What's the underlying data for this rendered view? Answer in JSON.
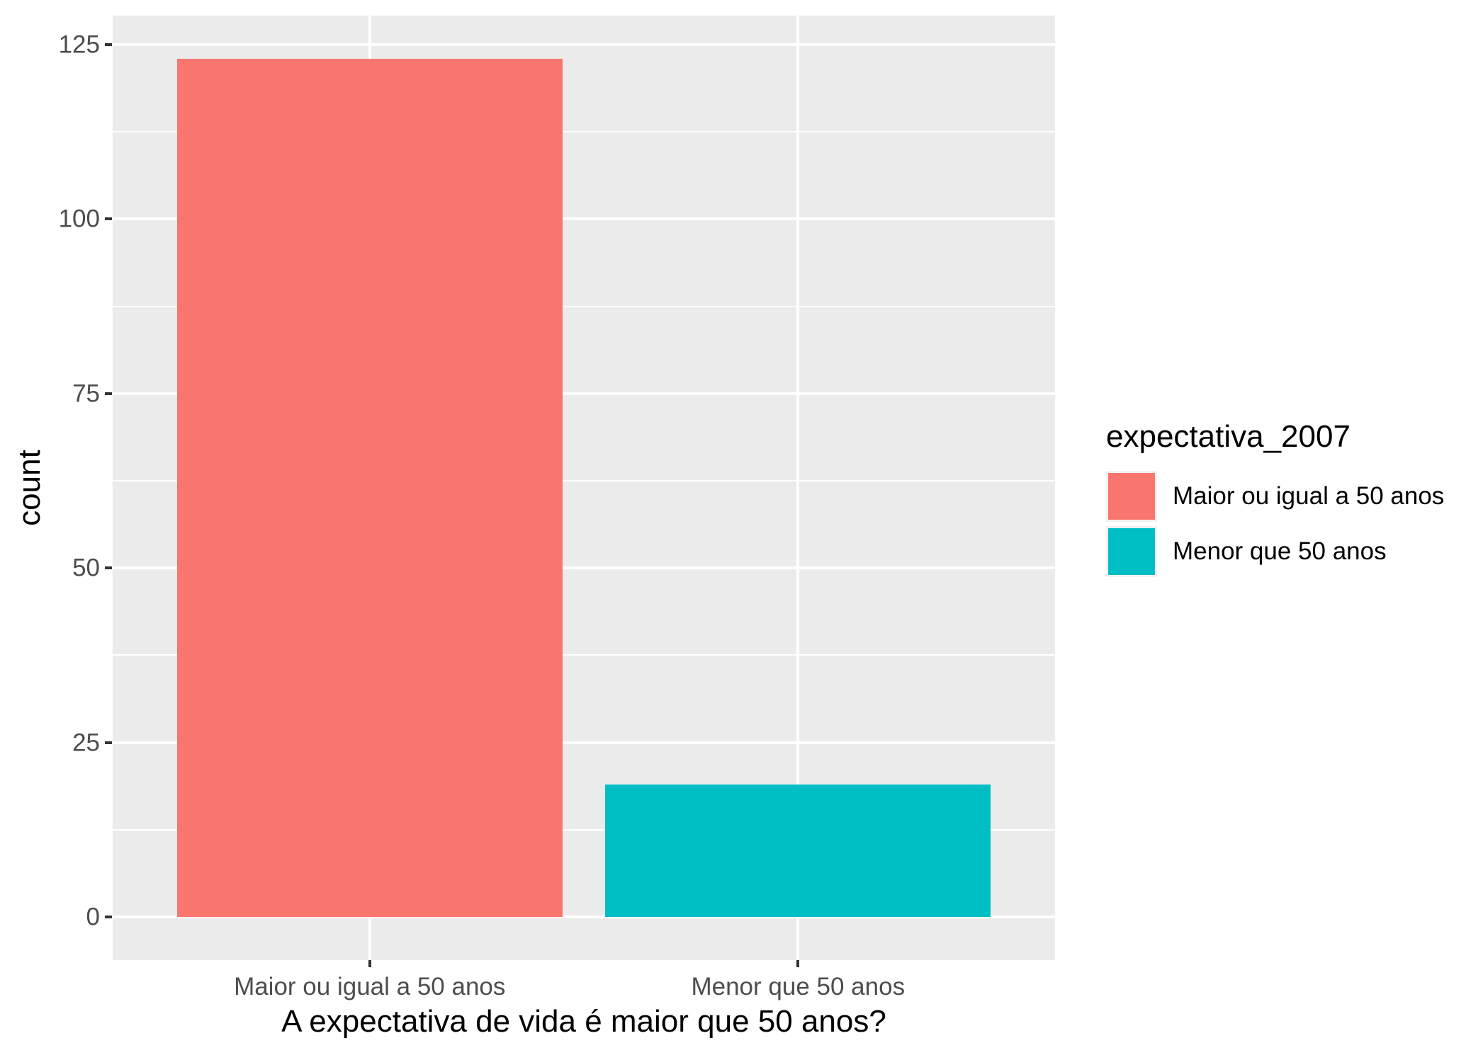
{
  "chart_data": {
    "type": "bar",
    "title": "",
    "xlabel": "A expectativa de vida é maior que 50 anos?",
    "ylabel": "count",
    "categories": [
      "Maior ou igual a 50 anos",
      "Menor que 50 anos"
    ],
    "values": [
      123,
      19
    ],
    "bar_colors": [
      "#F8766D",
      "#00BFC4"
    ],
    "yticks": [
      0,
      25,
      50,
      75,
      100,
      125
    ],
    "ytick_labels": [
      "0",
      "25",
      "50",
      "75",
      "100",
      "125"
    ],
    "ylim": [
      0,
      125
    ],
    "grid": true,
    "legend": {
      "title": "expectativa_2007",
      "position": "right",
      "entries": [
        {
          "label": "Maior ou igual a 50 anos",
          "color": "#F8766D"
        },
        {
          "label": "Menor que 50 anos",
          "color": "#00BFC4"
        }
      ]
    },
    "style": {
      "panel_bg": "#EBEBEB",
      "grid_color": "#FFFFFF",
      "tick_color": "#333333",
      "axis_text_color": "#4D4D4D",
      "title_color": "#000000",
      "legend_key_bg": "#F2F2F2"
    }
  }
}
